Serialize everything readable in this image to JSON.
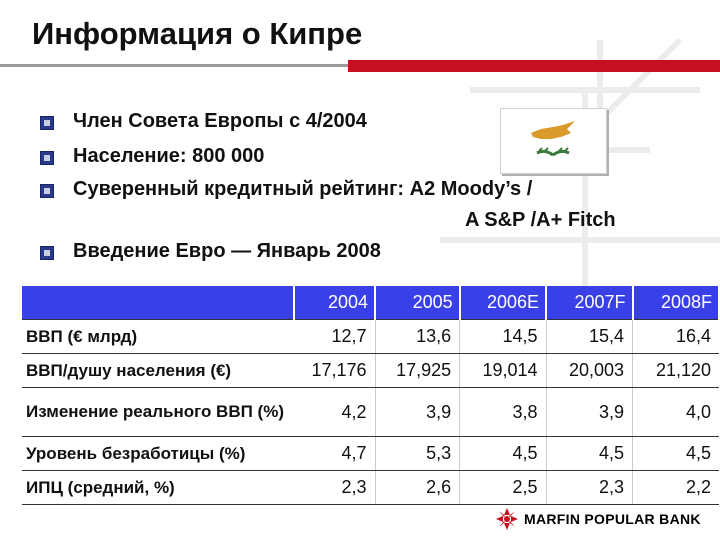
{
  "title": "Информация о Кипре",
  "bullets": [
    {
      "text": "Член Совета Европы с 4/2004"
    },
    {
      "text": "Население: 800 000"
    },
    {
      "text": "Суверенный кредитный рейтинг: A2 Moody’s /"
    },
    {
      "text": "Введение Евро — Январь 2008"
    }
  ],
  "rating_continuation": "A S&P /A+ Fitch",
  "table": {
    "columns": [
      "2004",
      "2005",
      "2006E",
      "2007F",
      "2008F"
    ],
    "rows": [
      {
        "label": "ВВП (€ млрд)",
        "values": [
          "12,7",
          "13,6",
          "14,5",
          "15,4",
          "16,4"
        ]
      },
      {
        "label": "ВВП/душу населения (€)",
        "values": [
          "17,176",
          "17,925",
          "19,014",
          "20,003",
          "21,120"
        ]
      },
      {
        "label": "Изменение реального ВВП (%)",
        "values": [
          "4,2",
          "3,9",
          "3,8",
          "3,9",
          "4,0"
        ]
      },
      {
        "label": "Уровень безработицы (%)",
        "values": [
          "4,7",
          "5,3",
          "4,5",
          "4,5",
          "4,5"
        ]
      },
      {
        "label": "ИПЦ (средний, %)",
        "values": [
          "2,3",
          "2,6",
          "2,5",
          "2,3",
          "2,2"
        ]
      }
    ]
  },
  "logo": {
    "name": "MARFIN POPULAR BANK",
    "icon": "marfin-logo-icon"
  },
  "colors": {
    "header_bg": "#3a40e8",
    "accent_red": "#c41020",
    "bullet": "#2a3a8a",
    "flag_island": "#d99a2a",
    "flag_leaves": "#3a7a3a"
  }
}
